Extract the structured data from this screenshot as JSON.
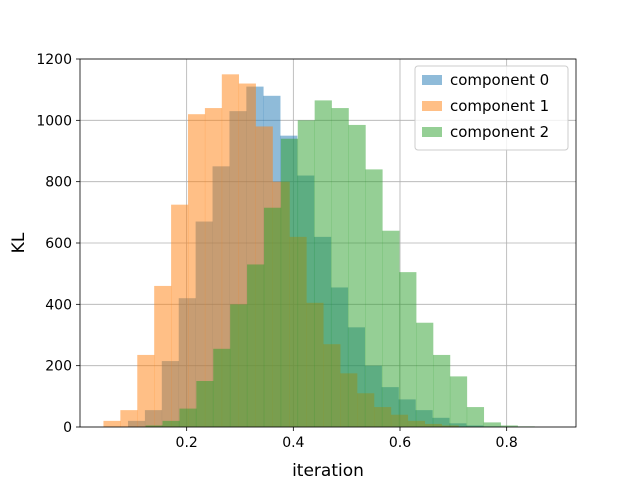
{
  "chart_data": {
    "type": "bar",
    "title": "",
    "xlabel": "iteration",
    "ylabel": "KL",
    "xlim": [
      0.0,
      0.93
    ],
    "ylim": [
      0,
      1200
    ],
    "xticks": [
      0.2,
      0.4,
      0.6,
      0.8
    ],
    "xtick_labels": [
      "0.2",
      "0.4",
      "0.6",
      "0.8"
    ],
    "yticks": [
      0,
      200,
      400,
      600,
      800,
      1000,
      1200
    ],
    "ytick_labels": [
      "0",
      "200",
      "400",
      "600",
      "800",
      "1000",
      "1200"
    ],
    "grid": true,
    "legend_position": "top-right",
    "series": [
      {
        "name": "component 0",
        "color": "#1f77b4",
        "opacity": 0.5,
        "bin_start": 0.09,
        "bin_width": 0.0317,
        "values": [
          20,
          55,
          215,
          420,
          670,
          850,
          1030,
          1110,
          1080,
          950,
          820,
          620,
          455,
          325,
          200,
          130,
          90,
          55,
          30,
          12,
          5,
          2
        ]
      },
      {
        "name": "component 1",
        "color": "#ff7f0e",
        "opacity": 0.5,
        "bin_start": 0.044,
        "bin_width": 0.0317,
        "values": [
          20,
          55,
          235,
          460,
          725,
          1020,
          1040,
          1150,
          1120,
          980,
          800,
          620,
          405,
          270,
          175,
          110,
          65,
          40,
          20,
          10,
          5
        ]
      },
      {
        "name": "component 2",
        "color": "#2ca02c",
        "opacity": 0.5,
        "bin_start": 0.123,
        "bin_width": 0.0317,
        "values": [
          5,
          20,
          60,
          150,
          255,
          400,
          530,
          715,
          940,
          1000,
          1065,
          1040,
          985,
          840,
          640,
          505,
          340,
          235,
          165,
          65,
          15,
          5,
          2
        ]
      }
    ]
  }
}
